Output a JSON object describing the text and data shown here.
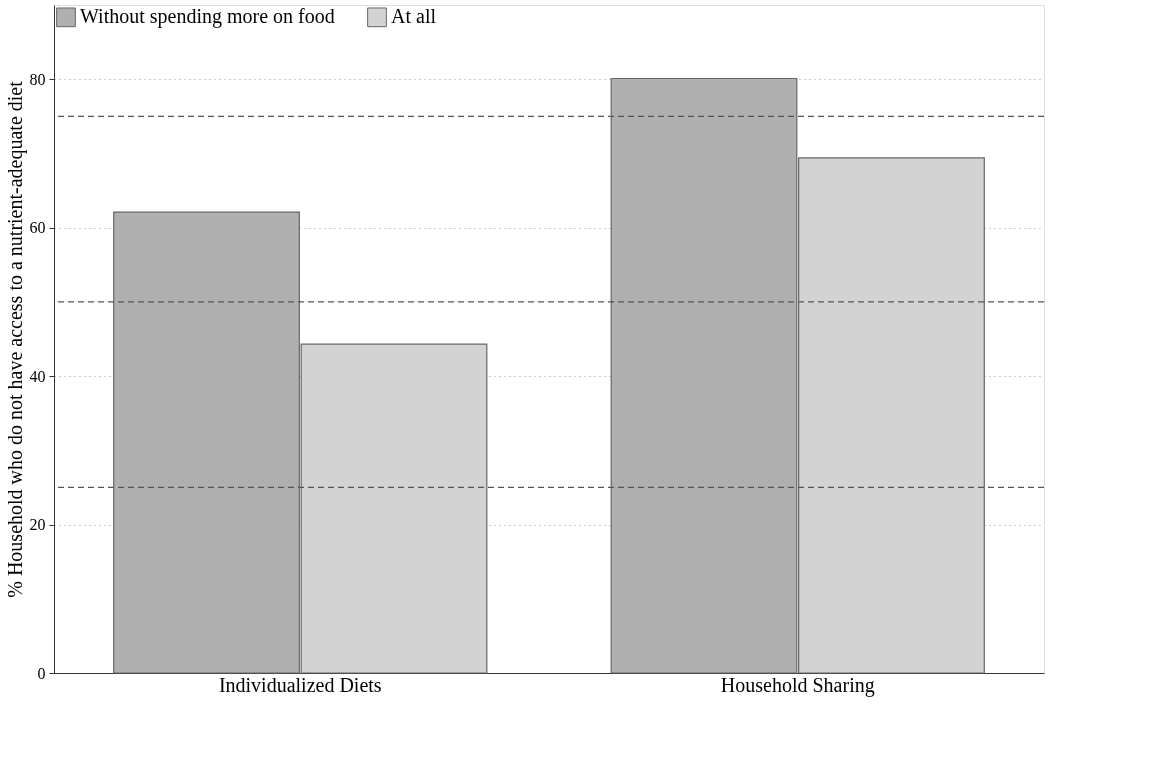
{
  "chart_data": {
    "type": "bar",
    "ylabel": "% Household who do not have access to a nutrient-adequate diet",
    "categories": [
      "Individualized Diets",
      "Household Sharing"
    ],
    "series": [
      {
        "name": "Without spending more on food",
        "color": "#b0b0b0",
        "values": [
          62.1,
          80.1
        ]
      },
      {
        "name": "At all",
        "color": "#d3d3d3",
        "values": [
          44.3,
          69.4
        ]
      }
    ],
    "ylim": [
      0,
      90
    ],
    "yticks": [
      0,
      20,
      40,
      60,
      80
    ],
    "grid": "y",
    "legend": "top left",
    "ref_lines": [
      {
        "axis": "y",
        "value": 25,
        "color": "#555555",
        "line_style": "dashed"
      },
      {
        "axis": "y",
        "value": 50,
        "color": "#555555",
        "line_style": "dashed"
      },
      {
        "axis": "y",
        "value": 75,
        "color": "#555555",
        "line_style": "dashed"
      }
    ]
  }
}
